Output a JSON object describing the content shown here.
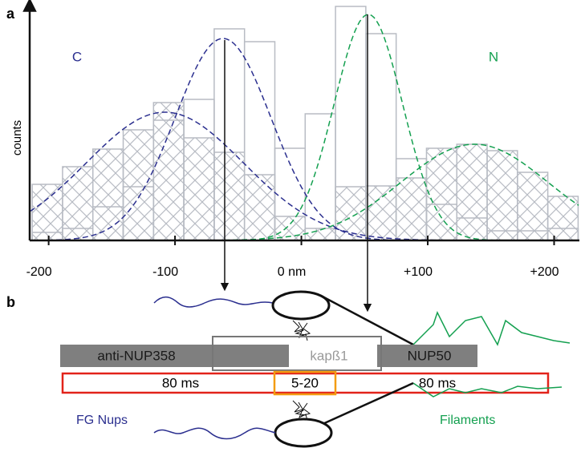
{
  "chart_data": {
    "type": "histogram",
    "panel_label": "a",
    "y_label": "counts",
    "annotations": [
      {
        "text": "C",
        "color": "#2b2f8f"
      },
      {
        "text": "N",
        "color": "#14a050"
      }
    ],
    "bins": [
      -213,
      -189,
      -165,
      -141,
      -117,
      -93,
      -69,
      -45,
      -21,
      3,
      27,
      51,
      75,
      99,
      123,
      147,
      171,
      195,
      219
    ],
    "series": [
      {
        "style": "hatched",
        "color": "#b8bcc4",
        "values": [
          70,
          92,
          114,
          138,
          172,
          128,
          110,
          82,
          30,
          15,
          67,
          68,
          78,
          115,
          120,
          112,
          85,
          55
        ]
      },
      {
        "style": "open",
        "color": "#b8bcc4",
        "values": [
          10,
          15,
          42,
          67,
          150,
          176,
          264,
          248,
          115,
          158,
          292,
          258,
          102,
          45,
          28,
          12,
          12,
          15
        ]
      }
    ],
    "curves": [
      {
        "color": "#2b2f8f",
        "mean": -62,
        "sd": 38,
        "amplitude": 252
      },
      {
        "color": "#2b2f8f",
        "mean": -108,
        "sd": 62,
        "amplitude": 160
      },
      {
        "color": "#14a050",
        "mean": 53,
        "sd": 27,
        "amplitude": 282
      },
      {
        "color": "#14a050",
        "mean": 137,
        "sd": 58,
        "amplitude": 120
      }
    ],
    "xlim": [
      -215,
      220
    ],
    "ylim": [
      0,
      300
    ],
    "xticks": [
      -200,
      -100,
      {
        "value": 0,
        "label": "0 nm"
      },
      {
        "value": 100,
        "label": "+100"
      },
      {
        "value": 200,
        "label": "+200"
      }
    ]
  },
  "diagram": {
    "panel_label": "b",
    "left_box": "anti-NUP358",
    "middle_box": "kapß1",
    "right_box": "NUP50",
    "left_time": "80 ms",
    "middle_time": "5-20",
    "right_time": "80 ms",
    "left_label": "FG Nups",
    "right_label": "Filaments"
  }
}
